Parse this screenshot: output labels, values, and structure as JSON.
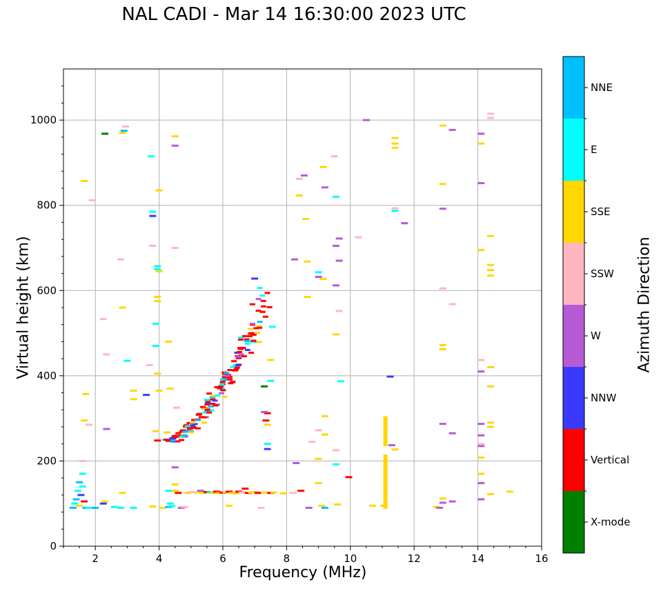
{
  "chart_data": {
    "type": "scatter",
    "title": "NAL CADI - Mar 14 16:30:00 2023 UTC",
    "xlabel": "Frequency (MHz)",
    "ylabel": "Virtual height (km)",
    "colorbar_label": "Azimuth Direction",
    "xlim": [
      1,
      16
    ],
    "ylim": [
      0,
      1120
    ],
    "xticks": [
      2,
      4,
      6,
      8,
      10,
      12,
      14,
      16
    ],
    "yticks": [
      0,
      200,
      400,
      600,
      800,
      1000
    ],
    "grid": true,
    "legend": "right colorbar",
    "categories": [
      {
        "name": "X-mode",
        "color": "#008000"
      },
      {
        "name": "Vertical",
        "color": "#ff0000"
      },
      {
        "name": "NNW",
        "color": "#3a3aff"
      },
      {
        "name": "W",
        "color": "#b65ad6"
      },
      {
        "name": "SSW",
        "color": "#ffb6c1"
      },
      {
        "name": "SSE",
        "color": "#ffd700"
      },
      {
        "name": "E",
        "color": "#00ffff"
      },
      {
        "name": "NNE",
        "color": "#00bfff"
      }
    ],
    "points": [
      [
        1.3,
        90,
        "NNE"
      ],
      [
        1.35,
        100,
        "E"
      ],
      [
        1.4,
        110,
        "NNE"
      ],
      [
        1.45,
        130,
        "E"
      ],
      [
        1.5,
        150,
        "NNE"
      ],
      [
        1.5,
        95,
        "SSE"
      ],
      [
        1.55,
        120,
        "NNW"
      ],
      [
        1.6,
        140,
        "E"
      ],
      [
        1.6,
        170,
        "E"
      ],
      [
        1.65,
        105,
        "Vertical"
      ],
      [
        1.6,
        200,
        "SSW"
      ],
      [
        1.7,
        90,
        "NNE"
      ],
      [
        1.8,
        90,
        "E"
      ],
      [
        1.65,
        295,
        "SSE"
      ],
      [
        1.7,
        357,
        "SSE"
      ],
      [
        1.65,
        857,
        "SSE"
      ],
      [
        1.9,
        812,
        "SSW"
      ],
      [
        1.8,
        285,
        "SSW"
      ],
      [
        2.0,
        90,
        "NNE"
      ],
      [
        2.25,
        100,
        "NNW"
      ],
      [
        2.3,
        105,
        "SSE"
      ],
      [
        2.25,
        533,
        "SSW"
      ],
      [
        2.35,
        275,
        "W"
      ],
      [
        2.35,
        450,
        "SSW"
      ],
      [
        2.3,
        968,
        "X-mode"
      ],
      [
        2.6,
        92,
        "E"
      ],
      [
        2.8,
        90,
        "E"
      ],
      [
        2.85,
        125,
        "SSE"
      ],
      [
        2.8,
        673,
        "SSW"
      ],
      [
        2.85,
        560,
        "SSE"
      ],
      [
        2.85,
        970,
        "SSE"
      ],
      [
        2.9,
        975,
        "NNE"
      ],
      [
        2.95,
        985,
        "SSW"
      ],
      [
        3.2,
        90,
        "E"
      ],
      [
        3.2,
        345,
        "SSE"
      ],
      [
        3.2,
        365,
        "SSE"
      ],
      [
        3.0,
        435,
        "E"
      ],
      [
        3.6,
        355,
        "NNW"
      ],
      [
        3.7,
        425,
        "SSW"
      ],
      [
        3.75,
        915,
        "E"
      ],
      [
        3.8,
        785,
        "E"
      ],
      [
        3.8,
        775,
        "NNW"
      ],
      [
        3.8,
        705,
        "SSW"
      ],
      [
        3.8,
        93,
        "SSE"
      ],
      [
        3.9,
        270,
        "SSE"
      ],
      [
        3.9,
        470,
        "E"
      ],
      [
        3.9,
        522,
        "E"
      ],
      [
        3.95,
        248,
        "Vertical"
      ],
      [
        3.95,
        405,
        "SSE"
      ],
      [
        3.95,
        575,
        "SSE"
      ],
      [
        3.95,
        585,
        "SSE"
      ],
      [
        3.95,
        650,
        "E"
      ],
      [
        3.95,
        657,
        "E"
      ],
      [
        4.0,
        835,
        "SSE"
      ],
      [
        4.0,
        645,
        "SSE"
      ],
      [
        4.0,
        365,
        "SSE"
      ],
      [
        4.1,
        90,
        "SSE"
      ],
      [
        4.2,
        250,
        "E"
      ],
      [
        4.25,
        267,
        "SSE"
      ],
      [
        4.3,
        92,
        "NNE"
      ],
      [
        4.35,
        100,
        "E"
      ],
      [
        4.3,
        130,
        "E"
      ],
      [
        4.4,
        94,
        "E"
      ],
      [
        4.3,
        480,
        "SSE"
      ],
      [
        4.35,
        370,
        "SSE"
      ],
      [
        4.5,
        145,
        "SSE"
      ],
      [
        4.5,
        185,
        "W"
      ],
      [
        4.5,
        130,
        "SSE"
      ],
      [
        4.55,
        325,
        "SSW"
      ],
      [
        4.5,
        700,
        "SSW"
      ],
      [
        4.5,
        940,
        "W"
      ],
      [
        4.5,
        962,
        "SSE"
      ],
      [
        4.6,
        125,
        "Vertical"
      ],
      [
        4.7,
        90,
        "W"
      ],
      [
        4.8,
        92,
        "SSW"
      ],
      [
        4.9,
        125,
        "SSE"
      ],
      [
        5.0,
        127,
        "SSW"
      ],
      [
        5.2,
        126,
        "SSE"
      ],
      [
        5.3,
        130,
        "W"
      ],
      [
        5.4,
        125,
        "SSE"
      ],
      [
        5.5,
        127,
        "Vertical"
      ],
      [
        5.6,
        126,
        "E"
      ],
      [
        5.7,
        125,
        "SSE"
      ],
      [
        5.8,
        128,
        "Vertical"
      ],
      [
        5.9,
        125,
        "SSE"
      ],
      [
        6.0,
        126,
        "Vertical"
      ],
      [
        6.1,
        127,
        "SSE"
      ],
      [
        6.2,
        128,
        "Vertical"
      ],
      [
        6.3,
        125,
        "SSE"
      ],
      [
        6.4,
        124,
        "SSE"
      ],
      [
        6.5,
        128,
        "Vertical"
      ],
      [
        6.6,
        126,
        "SSW"
      ],
      [
        6.7,
        135,
        "Vertical"
      ],
      [
        6.8,
        125,
        "Vertical"
      ],
      [
        6.9,
        126,
        "SSE"
      ],
      [
        7.0,
        127,
        "SSE"
      ],
      [
        7.1,
        125,
        "Vertical"
      ],
      [
        7.3,
        126,
        "SSE"
      ],
      [
        7.5,
        125,
        "Vertical"
      ],
      [
        7.6,
        126,
        "SSE"
      ],
      [
        7.9,
        124,
        "SSE"
      ],
      [
        8.2,
        125,
        "SSW"
      ],
      [
        8.45,
        130,
        "Vertical"
      ],
      [
        6.2,
        95,
        "SSE"
      ],
      [
        7.2,
        90,
        "SSW"
      ],
      [
        7.35,
        295,
        "Vertical"
      ],
      [
        7.4,
        240,
        "E"
      ],
      [
        7.4,
        228,
        "NNW"
      ],
      [
        7.4,
        285,
        "SSE"
      ],
      [
        7.4,
        312,
        "Vertical"
      ],
      [
        7.5,
        388,
        "E"
      ],
      [
        7.5,
        437,
        "SSE"
      ],
      [
        7.55,
        515,
        "E"
      ],
      [
        7.3,
        375,
        "X-mode"
      ],
      [
        7.3,
        315,
        "W"
      ],
      [
        7.0,
        628,
        "NNW"
      ],
      [
        8.3,
        195,
        "W"
      ],
      [
        8.4,
        823,
        "SSE"
      ],
      [
        8.4,
        862,
        "SSW"
      ],
      [
        8.55,
        870,
        "W"
      ],
      [
        8.6,
        768,
        "SSE"
      ],
      [
        8.25,
        673,
        "W"
      ],
      [
        8.65,
        668,
        "SSE"
      ],
      [
        8.65,
        585,
        "SSE"
      ],
      [
        8.8,
        245,
        "SSW"
      ],
      [
        8.7,
        90,
        "W"
      ],
      [
        9.0,
        205,
        "SSE"
      ],
      [
        9.0,
        148,
        "SSE"
      ],
      [
        9.0,
        272,
        "SSW"
      ],
      [
        9.0,
        632,
        "W"
      ],
      [
        9.0,
        643,
        "E"
      ],
      [
        9.15,
        627,
        "SSE"
      ],
      [
        9.15,
        890,
        "SSE"
      ],
      [
        9.2,
        842,
        "W"
      ],
      [
        9.2,
        305,
        "SSE"
      ],
      [
        9.2,
        262,
        "SSE"
      ],
      [
        9.2,
        90,
        "NNE"
      ],
      [
        9.1,
        95,
        "SSE"
      ],
      [
        9.5,
        915,
        "SSW"
      ],
      [
        9.55,
        820,
        "E"
      ],
      [
        9.55,
        705,
        "W"
      ],
      [
        9.55,
        612,
        "W"
      ],
      [
        9.55,
        497,
        "SSE"
      ],
      [
        9.55,
        225,
        "SSW"
      ],
      [
        9.55,
        192,
        "E"
      ],
      [
        9.6,
        98,
        "SSE"
      ],
      [
        9.65,
        722,
        "W"
      ],
      [
        9.65,
        670,
        "W"
      ],
      [
        9.65,
        552,
        "SSW"
      ],
      [
        9.7,
        387,
        "E"
      ],
      [
        9.95,
        162,
        "Vertical"
      ],
      [
        10.25,
        725,
        "SSW"
      ],
      [
        10.5,
        1000,
        "W"
      ],
      [
        10.7,
        95,
        "SSE"
      ],
      [
        11.05,
        95,
        "SSE"
      ],
      [
        11.25,
        398,
        "NNW"
      ],
      [
        11.3,
        237,
        "W"
      ],
      [
        11.4,
        227,
        "SSE"
      ],
      [
        11.4,
        958,
        "SSE"
      ],
      [
        11.4,
        945,
        "SSE"
      ],
      [
        11.4,
        935,
        "SSE"
      ],
      [
        11.4,
        793,
        "SSW"
      ],
      [
        11.4,
        787,
        "E"
      ],
      [
        11.7,
        758,
        "W"
      ],
      [
        12.7,
        92,
        "SSE"
      ],
      [
        12.8,
        90,
        "W"
      ],
      [
        12.9,
        112,
        "SSE"
      ],
      [
        12.9,
        102,
        "W"
      ],
      [
        12.9,
        287,
        "W"
      ],
      [
        12.9,
        462,
        "SSE"
      ],
      [
        12.9,
        472,
        "SSE"
      ],
      [
        12.9,
        605,
        "SSW"
      ],
      [
        12.9,
        792,
        "W"
      ],
      [
        12.9,
        850,
        "SSE"
      ],
      [
        12.9,
        987,
        "SSE"
      ],
      [
        13.2,
        105,
        "W"
      ],
      [
        13.2,
        265,
        "W"
      ],
      [
        13.2,
        568,
        "SSW"
      ],
      [
        13.2,
        977,
        "W"
      ],
      [
        14.1,
        110,
        "W"
      ],
      [
        14.1,
        148,
        "W"
      ],
      [
        14.1,
        170,
        "SSE"
      ],
      [
        14.1,
        208,
        "SSE"
      ],
      [
        14.1,
        235,
        "W"
      ],
      [
        14.1,
        240,
        "SSW"
      ],
      [
        14.1,
        260,
        "W"
      ],
      [
        14.1,
        287,
        "W"
      ],
      [
        14.1,
        410,
        "W"
      ],
      [
        14.1,
        437,
        "SSW"
      ],
      [
        14.1,
        695,
        "SSE"
      ],
      [
        14.1,
        852,
        "W"
      ],
      [
        14.1,
        945,
        "SSE"
      ],
      [
        14.1,
        968,
        "W"
      ],
      [
        14.4,
        122,
        "SSE"
      ],
      [
        14.4,
        280,
        "SSE"
      ],
      [
        14.4,
        290,
        "SSE"
      ],
      [
        14.4,
        375,
        "SSE"
      ],
      [
        14.4,
        420,
        "SSE"
      ],
      [
        14.4,
        635,
        "SSE"
      ],
      [
        14.4,
        648,
        "SSE"
      ],
      [
        14.4,
        660,
        "SSE"
      ],
      [
        14.4,
        728,
        "SSE"
      ],
      [
        14.4,
        1005,
        "SSW"
      ],
      [
        14.4,
        1015,
        "SSW"
      ],
      [
        15.0,
        128,
        "SSE"
      ]
    ],
    "columns": [
      {
        "x": 11.1,
        "y0": 88,
        "y1": 215,
        "azimuth": "SSE"
      },
      {
        "x": 11.1,
        "y0": 235,
        "y1": 305,
        "azimuth": "SSE"
      }
    ],
    "traces": [
      {
        "x0": 4.3,
        "y0": 248,
        "x1": 7.35,
        "y1": 575,
        "curve": 0.6
      }
    ]
  }
}
